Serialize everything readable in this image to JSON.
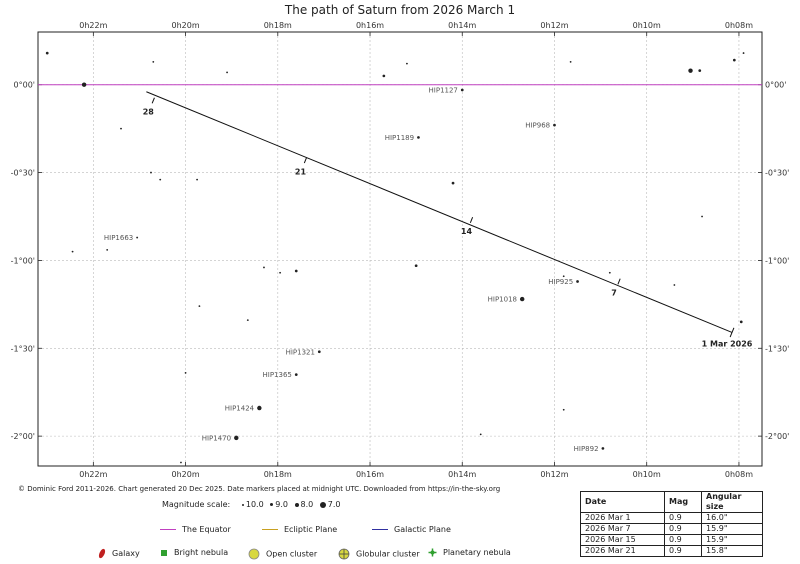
{
  "title": "The path of Saturn from 2026 March 1",
  "copyright": "© Dominic Ford 2011-2026. Chart generated 20 Dec 2025. Date markers placed at midnight UTC. Downloaded from https://in-the-sky.org",
  "magnitude_scale": {
    "label": "Magnitude scale:",
    "entries": [
      "10.0",
      "9.0",
      "8.0",
      "7.0"
    ]
  },
  "line_legend": {
    "equator": {
      "label": "The Equator",
      "color": "#c040c0"
    },
    "ecliptic": {
      "label": "Ecliptic Plane",
      "color": "#c8a020"
    },
    "galactic": {
      "label": "Galactic Plane",
      "color": "#3030a0"
    }
  },
  "object_legend": {
    "galaxy": {
      "label": "Galaxy",
      "color": "#c02020"
    },
    "nebula": {
      "label": "Bright nebula",
      "color": "#30a030"
    },
    "open_cluster": {
      "label": "Open cluster",
      "color": "#c8c830"
    },
    "globular_cluster": {
      "label": "Globular cluster",
      "color": "#c8c830"
    },
    "planetary_nebula": {
      "label": "Planetary nebula",
      "color": "#30a030"
    }
  },
  "table": {
    "headers": [
      "Date",
      "Mag",
      "Angular size"
    ],
    "rows": [
      [
        "2026 Mar 1",
        "0.9",
        "16.0\""
      ],
      [
        "2026 Mar 7",
        "0.9",
        "15.9\""
      ],
      [
        "2026 Mar 15",
        "0.9",
        "15.9\""
      ],
      [
        "2026 Mar 21",
        "0.9",
        "15.8\""
      ]
    ]
  },
  "chart_data": {
    "type": "scatter",
    "title": "The path of Saturn from 2026 March 1",
    "x_axis": {
      "unit": "minutes of right ascension",
      "range": [
        23.2,
        7.5
      ],
      "ticks": [
        22,
        20,
        18,
        16,
        14,
        12,
        10,
        8
      ],
      "tick_labels": [
        "0h22m",
        "0h20m",
        "0h18m",
        "0h16m",
        "0h14m",
        "0h12m",
        "0h10m",
        "0h08m"
      ]
    },
    "y_axis": {
      "unit": "degrees of declination",
      "range": [
        -2.17,
        0.3
      ],
      "ticks": [
        0,
        -0.5,
        -1,
        -1.5,
        -2
      ],
      "tick_labels": [
        "0°00'",
        "-0°30'",
        "-1°00'",
        "-1°30'",
        "-2°00'"
      ]
    },
    "grid": true,
    "equator_dec": 0,
    "saturn_path": {
      "start": {
        "ra": 8.15,
        "dec": -1.41
      },
      "end": {
        "ra": 20.85,
        "dec": -0.04
      },
      "markers": [
        {
          "label": "1 Mar 2026",
          "ra": 8.15,
          "dec": -1.41
        },
        {
          "label": "7",
          "ra": 10.6,
          "dec": -1.12
        },
        {
          "label": "14",
          "ra": 13.8,
          "dec": -0.77
        },
        {
          "label": "21",
          "ra": 17.4,
          "dec": -0.43
        },
        {
          "label": "28",
          "ra": 20.7,
          "dec": -0.09
        }
      ]
    },
    "stars": [
      {
        "ra": 23.0,
        "dec": 0.18,
        "mag": 9.0
      },
      {
        "ra": 22.2,
        "dec": 0.0,
        "mag": 8.0
      },
      {
        "ra": 20.7,
        "dec": 0.13,
        "mag": 10.0
      },
      {
        "ra": 19.1,
        "dec": 0.07,
        "mag": 10.0
      },
      {
        "ra": 15.7,
        "dec": 0.05,
        "mag": 9.0
      },
      {
        "ra": 15.2,
        "dec": 0.12,
        "mag": 10.0
      },
      {
        "ra": 14.0,
        "dec": -0.03,
        "mag": 9.0,
        "label": "HIP1127"
      },
      {
        "ra": 11.65,
        "dec": 0.13,
        "mag": 10.0
      },
      {
        "ra": 9.05,
        "dec": 0.08,
        "mag": 8.0
      },
      {
        "ra": 8.85,
        "dec": 0.08,
        "mag": 9.0
      },
      {
        "ra": 8.1,
        "dec": 0.14,
        "mag": 9.0
      },
      {
        "ra": 7.9,
        "dec": 0.18,
        "mag": 10.0
      },
      {
        "ra": 21.4,
        "dec": -0.25,
        "mag": 10.0
      },
      {
        "ra": 12.0,
        "dec": -0.23,
        "mag": 9.0,
        "label": "HIP968"
      },
      {
        "ra": 14.95,
        "dec": -0.3,
        "mag": 9.0,
        "label": "HIP1189"
      },
      {
        "ra": 20.75,
        "dec": -0.5,
        "mag": 10.0
      },
      {
        "ra": 20.55,
        "dec": -0.54,
        "mag": 10.0
      },
      {
        "ra": 19.75,
        "dec": -0.54,
        "mag": 10.0
      },
      {
        "ra": 14.2,
        "dec": -0.56,
        "mag": 9.0
      },
      {
        "ra": 8.8,
        "dec": -0.75,
        "mag": 10.0
      },
      {
        "ra": 21.05,
        "dec": -0.87,
        "mag": 10.0,
        "label": "HIP1663"
      },
      {
        "ra": 21.7,
        "dec": -0.94,
        "mag": 10.0
      },
      {
        "ra": 22.45,
        "dec": -0.95,
        "mag": 10.0
      },
      {
        "ra": 15.0,
        "dec": -1.03,
        "mag": 9.0
      },
      {
        "ra": 18.3,
        "dec": -1.04,
        "mag": 10.0
      },
      {
        "ra": 17.95,
        "dec": -1.07,
        "mag": 10.0
      },
      {
        "ra": 17.6,
        "dec": -1.06,
        "mag": 9.0
      },
      {
        "ra": 11.8,
        "dec": -1.09,
        "mag": 10.0
      },
      {
        "ra": 10.8,
        "dec": -1.07,
        "mag": 10.0
      },
      {
        "ra": 11.5,
        "dec": -1.12,
        "mag": 9.0,
        "label": "HIP925"
      },
      {
        "ra": 9.4,
        "dec": -1.14,
        "mag": 10.0
      },
      {
        "ra": 12.7,
        "dec": -1.22,
        "mag": 8.0,
        "label": "HIP1018"
      },
      {
        "ra": 19.7,
        "dec": -1.26,
        "mag": 10.0
      },
      {
        "ra": 18.65,
        "dec": -1.34,
        "mag": 10.0
      },
      {
        "ra": 7.95,
        "dec": -1.35,
        "mag": 9.0
      },
      {
        "ra": 17.1,
        "dec": -1.52,
        "mag": 9.0,
        "label": "HIP1321"
      },
      {
        "ra": 20.0,
        "dec": -1.64,
        "mag": 10.0
      },
      {
        "ra": 17.6,
        "dec": -1.65,
        "mag": 9.0,
        "label": "HIP1365"
      },
      {
        "ra": 11.8,
        "dec": -1.85,
        "mag": 10.0
      },
      {
        "ra": 18.4,
        "dec": -1.84,
        "mag": 8.0,
        "label": "HIP1424"
      },
      {
        "ra": 13.6,
        "dec": -1.99,
        "mag": 10.0
      },
      {
        "ra": 18.9,
        "dec": -2.01,
        "mag": 8.0,
        "label": "HIP1470"
      },
      {
        "ra": 10.95,
        "dec": -2.07,
        "mag": 9.0,
        "label": "HIP892"
      },
      {
        "ra": 20.1,
        "dec": -2.15,
        "mag": 10.0
      }
    ]
  }
}
